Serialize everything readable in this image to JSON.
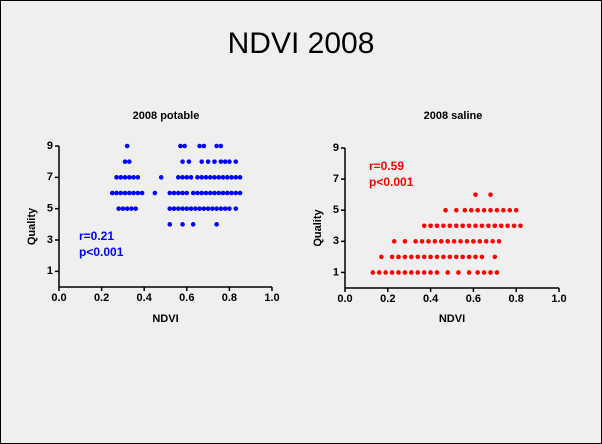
{
  "title": "NDVI 2008",
  "chart_data": [
    {
      "type": "scatter",
      "title": "2008 potable",
      "x_label": "NDVI",
      "y_label": "Quality",
      "color": "#0000ff",
      "annotations": [
        "r=0.21",
        "p<0.001"
      ],
      "xlim": [
        0,
        1
      ],
      "xticks": [
        {
          "value": 0,
          "label": "0.0"
        },
        {
          "value": 0.2,
          "label": "0.2"
        },
        {
          "value": 0.4,
          "label": "0.4"
        },
        {
          "value": 0.6,
          "label": "0.6"
        },
        {
          "value": 0.8,
          "label": "0.8"
        },
        {
          "value": 1,
          "label": "1.0"
        }
      ],
      "ylim": [
        0,
        9
      ],
      "yticks": [
        1,
        3,
        5,
        7,
        9
      ],
      "x": [
        0.32,
        0.57,
        0.59,
        0.66,
        0.68,
        0.74,
        0.76,
        0.31,
        0.33,
        0.58,
        0.61,
        0.67,
        0.7,
        0.73,
        0.76,
        0.78,
        0.8,
        0.83,
        0.27,
        0.29,
        0.31,
        0.33,
        0.35,
        0.37,
        0.48,
        0.56,
        0.58,
        0.6,
        0.62,
        0.65,
        0.67,
        0.69,
        0.71,
        0.73,
        0.75,
        0.77,
        0.79,
        0.81,
        0.83,
        0.85,
        0.25,
        0.27,
        0.29,
        0.31,
        0.33,
        0.35,
        0.37,
        0.39,
        0.45,
        0.52,
        0.54,
        0.56,
        0.58,
        0.6,
        0.63,
        0.65,
        0.67,
        0.69,
        0.71,
        0.73,
        0.75,
        0.77,
        0.79,
        0.81,
        0.83,
        0.85,
        0.28,
        0.3,
        0.32,
        0.34,
        0.36,
        0.52,
        0.54,
        0.56,
        0.58,
        0.6,
        0.62,
        0.64,
        0.66,
        0.68,
        0.7,
        0.72,
        0.74,
        0.76,
        0.78,
        0.8,
        0.83,
        0.52,
        0.58,
        0.63,
        0.74
      ],
      "values": [
        9,
        9,
        9,
        9,
        9,
        9,
        9,
        8,
        8,
        8,
        8,
        8,
        8,
        8,
        8,
        8,
        8,
        8,
        7,
        7,
        7,
        7,
        7,
        7,
        7,
        7,
        7,
        7,
        7,
        7,
        7,
        7,
        7,
        7,
        7,
        7,
        7,
        7,
        7,
        7,
        6,
        6,
        6,
        6,
        6,
        6,
        6,
        6,
        6,
        6,
        6,
        6,
        6,
        6,
        6,
        6,
        6,
        6,
        6,
        6,
        6,
        6,
        6,
        6,
        6,
        6,
        5,
        5,
        5,
        5,
        5,
        5,
        5,
        5,
        5,
        5,
        5,
        5,
        5,
        5,
        5,
        5,
        5,
        5,
        5,
        5,
        5,
        4,
        4,
        4,
        4
      ]
    },
    {
      "type": "scatter",
      "title": "2008 saline",
      "x_label": "NDVI",
      "y_label": "Quality",
      "color": "#ff0000",
      "annotations": [
        "r=0.59",
        "p<0.001"
      ],
      "xlim": [
        0,
        1
      ],
      "xticks": [
        {
          "value": 0,
          "label": "0.0"
        },
        {
          "value": 0.2,
          "label": "0.2"
        },
        {
          "value": 0.4,
          "label": "0.4"
        },
        {
          "value": 0.6,
          "label": "0.6"
        },
        {
          "value": 0.8,
          "label": "0.8"
        },
        {
          "value": 1,
          "label": "1.0"
        }
      ],
      "ylim": [
        0,
        9
      ],
      "yticks": [
        1,
        3,
        5,
        7,
        9
      ],
      "x": [
        0.61,
        0.68,
        0.47,
        0.52,
        0.56,
        0.59,
        0.62,
        0.65,
        0.68,
        0.71,
        0.74,
        0.77,
        0.8,
        0.37,
        0.4,
        0.43,
        0.46,
        0.49,
        0.52,
        0.55,
        0.58,
        0.61,
        0.64,
        0.67,
        0.7,
        0.73,
        0.76,
        0.79,
        0.82,
        0.23,
        0.28,
        0.33,
        0.36,
        0.39,
        0.42,
        0.45,
        0.48,
        0.51,
        0.54,
        0.57,
        0.6,
        0.63,
        0.66,
        0.69,
        0.72,
        0.17,
        0.22,
        0.25,
        0.28,
        0.31,
        0.34,
        0.37,
        0.4,
        0.43,
        0.46,
        0.49,
        0.52,
        0.55,
        0.58,
        0.61,
        0.64,
        0.7,
        0.13,
        0.16,
        0.19,
        0.22,
        0.25,
        0.28,
        0.31,
        0.34,
        0.37,
        0.4,
        0.43,
        0.48,
        0.53,
        0.58,
        0.62,
        0.65,
        0.68,
        0.71
      ],
      "values": [
        6,
        6,
        5,
        5,
        5,
        5,
        5,
        5,
        5,
        5,
        5,
        5,
        5,
        4,
        4,
        4,
        4,
        4,
        4,
        4,
        4,
        4,
        4,
        4,
        4,
        4,
        4,
        4,
        4,
        3,
        3,
        3,
        3,
        3,
        3,
        3,
        3,
        3,
        3,
        3,
        3,
        3,
        3,
        3,
        3,
        2,
        2,
        2,
        2,
        2,
        2,
        2,
        2,
        2,
        2,
        2,
        2,
        2,
        2,
        2,
        2,
        2,
        1,
        1,
        1,
        1,
        1,
        1,
        1,
        1,
        1,
        1,
        1,
        1,
        1,
        1,
        1,
        1,
        1,
        1
      ]
    }
  ]
}
